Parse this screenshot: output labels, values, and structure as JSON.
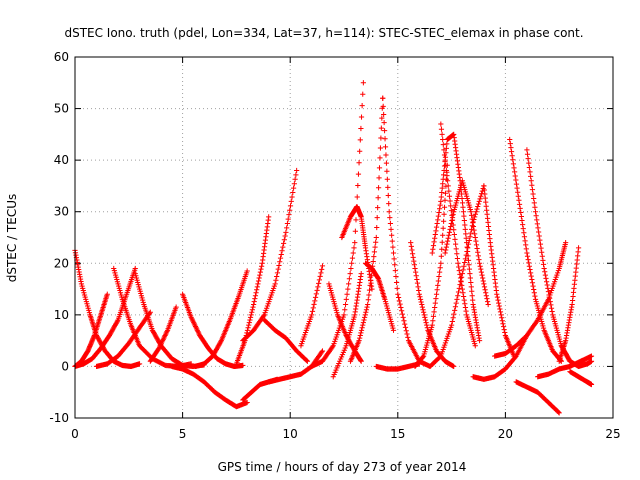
{
  "chart_data": {
    "type": "scatter",
    "title": "dSTEC Iono. truth (pdel, Lon=334, Lat=37, h=114): STEC-STEC_elemax in phase cont.",
    "xlabel": "GPS time / hours of day 273 of year 2014",
    "ylabel": "dSTEC  / TECUs",
    "xlim": [
      0,
      25
    ],
    "ylim": [
      -10,
      60
    ],
    "xticks": [
      0,
      5,
      10,
      15,
      20,
      25
    ],
    "yticks": [
      -10,
      0,
      10,
      20,
      30,
      40,
      50,
      60
    ],
    "grid": true,
    "marker": "+",
    "color": "#ff0000",
    "series": [
      {
        "x": [
          0.0,
          0.3,
          0.7,
          1.0,
          1.4,
          1.8,
          2.2,
          2.6,
          3.0
        ],
        "y": [
          22.5,
          16,
          10,
          6,
          3,
          1,
          0.2,
          0,
          0.5
        ]
      },
      {
        "x": [
          0.0,
          0.4,
          0.8,
          1.2,
          1.6,
          2.0,
          2.4,
          2.8
        ],
        "y": [
          0,
          0.5,
          1.5,
          3.5,
          6,
          9,
          14,
          19
        ]
      },
      {
        "x": [
          0.0,
          0.3,
          0.6,
          0.9,
          1.2,
          1.5
        ],
        "y": [
          0,
          1,
          3,
          6,
          10,
          14
        ]
      },
      {
        "x": [
          1.8,
          2.2,
          2.6,
          3.0,
          3.6,
          4.2,
          4.8,
          5.4
        ],
        "y": [
          19,
          13,
          8,
          4,
          1.5,
          0.2,
          0,
          0.5
        ]
      },
      {
        "x": [
          1.0,
          1.5,
          2.0,
          2.5,
          3.0,
          3.5
        ],
        "y": [
          0,
          0.5,
          2,
          4.5,
          7.5,
          10.5
        ]
      },
      {
        "x": [
          2.8,
          3.2,
          3.6,
          4.0,
          4.5,
          5.0,
          5.5,
          6.0
        ],
        "y": [
          18,
          12,
          7,
          4,
          1.5,
          0.2,
          0,
          0.3
        ]
      },
      {
        "x": [
          3.5,
          3.9,
          4.3,
          4.7
        ],
        "y": [
          1,
          3.5,
          7,
          11.5
        ]
      },
      {
        "x": [
          5.0,
          5.4,
          5.8,
          6.2,
          6.6,
          7.0,
          7.4,
          7.8
        ],
        "y": [
          14,
          9.5,
          6,
          3.5,
          1.5,
          0.5,
          0,
          0.2
        ]
      },
      {
        "x": [
          5.6,
          6.0,
          6.4,
          6.8,
          7.2,
          7.6,
          8.0
        ],
        "y": [
          0,
          0.5,
          2,
          5,
          9,
          13.5,
          18.5
        ]
      },
      {
        "x": [
          4.5,
          5.0,
          5.5,
          6.0,
          6.5,
          7.0,
          7.5,
          8.0
        ],
        "y": [
          0,
          -0.5,
          -1.5,
          -3,
          -5,
          -6.5,
          -7.8,
          -7
        ]
      },
      {
        "x": [
          7.8,
          8.2,
          8.6,
          9.0,
          9.4
        ],
        "y": [
          -6.5,
          -5,
          -3.5,
          -3,
          -2.5
        ]
      },
      {
        "x": [
          7.5,
          7.9,
          8.3,
          8.7,
          9.0
        ],
        "y": [
          0.5,
          5,
          12,
          20,
          29
        ]
      },
      {
        "x": [
          7.8,
          8.3,
          8.8,
          9.3,
          9.8,
          10.3
        ],
        "y": [
          5,
          7,
          10,
          16,
          26,
          38
        ]
      },
      {
        "x": [
          8.8,
          9.3,
          9.8,
          10.3,
          10.8
        ],
        "y": [
          9,
          7,
          5.5,
          3,
          1
        ]
      },
      {
        "x": [
          9.0,
          9.5,
          10.0,
          10.5,
          11.0,
          11.5
        ],
        "y": [
          -3,
          -2.5,
          -2,
          -1.5,
          0,
          3
        ]
      },
      {
        "x": [
          10.5,
          11.0,
          11.5
        ],
        "y": [
          4,
          10,
          19.5
        ]
      },
      {
        "x": [
          11.8,
          12.2,
          12.6,
          13.0,
          13.3
        ],
        "y": [
          16,
          10,
          6,
          3,
          1
        ]
      },
      {
        "x": [
          11.0,
          11.5,
          12.0,
          12.5,
          13.0,
          13.4
        ],
        "y": [
          0,
          1,
          4,
          10,
          24,
          55
        ]
      },
      {
        "x": [
          12.4,
          12.8,
          13.1,
          13.3,
          13.5,
          13.8
        ],
        "y": [
          25,
          29,
          31,
          29,
          23,
          15
        ]
      },
      {
        "x": [
          12.0,
          12.6,
          13.0,
          13.3
        ],
        "y": [
          -2,
          4,
          10,
          18
        ]
      },
      {
        "x": [
          12.8,
          13.2,
          13.6,
          14.0,
          14.3
        ],
        "y": [
          1,
          5,
          12,
          25,
          52
        ]
      },
      {
        "x": [
          14.3,
          14.6,
          15.0,
          15.5,
          16.0,
          16.5
        ],
        "y": [
          52,
          30,
          14,
          5,
          1,
          0
        ]
      },
      {
        "x": [
          13.5,
          13.8,
          14.1,
          14.4,
          14.8
        ],
        "y": [
          20,
          19,
          17,
          13,
          7
        ]
      },
      {
        "x": [
          14.0,
          14.5,
          15.0,
          15.5,
          16.0
        ],
        "y": [
          0,
          -0.5,
          -0.5,
          0,
          0.5
        ]
      },
      {
        "x": [
          15.6,
          16.0,
          16.4,
          16.8,
          17.2,
          17.6
        ],
        "y": [
          24,
          14,
          7,
          3,
          1,
          0
        ]
      },
      {
        "x": [
          15.8,
          16.2,
          16.6,
          17.0,
          17.3
        ],
        "y": [
          0,
          2,
          8,
          20,
          39
        ]
      },
      {
        "x": [
          17.0,
          17.4,
          17.8,
          18.2,
          18.6
        ],
        "y": [
          47,
          33,
          20,
          10,
          4
        ]
      },
      {
        "x": [
          16.6,
          17.0,
          17.3,
          17.6,
          17.9,
          18.2,
          18.5,
          18.8
        ],
        "y": [
          22,
          32,
          44,
          45,
          36,
          24,
          12,
          5
        ]
      },
      {
        "x": [
          17.2,
          17.6,
          18.0,
          18.4,
          18.8,
          19.2
        ],
        "y": [
          22,
          30,
          36,
          30,
          20,
          12
        ]
      },
      {
        "x": [
          16.5,
          17.0,
          17.5,
          18.0,
          18.5,
          19.0
        ],
        "y": [
          0,
          2,
          8,
          18,
          28,
          35
        ]
      },
      {
        "x": [
          19.0,
          19.3,
          19.6,
          20.0,
          20.4
        ],
        "y": [
          35,
          24,
          14,
          6,
          2
        ]
      },
      {
        "x": [
          18.5,
          19.0,
          19.5,
          20.0,
          20.5,
          21.0
        ],
        "y": [
          -2,
          -2.5,
          -2,
          -0.5,
          2,
          6
        ]
      },
      {
        "x": [
          20.2,
          20.6,
          21.0,
          21.4,
          21.8,
          22.2,
          22.6
        ],
        "y": [
          44,
          33,
          22,
          13,
          7,
          3,
          1
        ]
      },
      {
        "x": [
          21.0,
          21.4,
          21.8,
          22.2,
          22.6,
          23.0
        ],
        "y": [
          42,
          30,
          19,
          10,
          4,
          1
        ]
      },
      {
        "x": [
          19.5,
          20.0,
          20.5,
          21.0,
          21.5,
          22.0,
          22.5,
          22.8
        ],
        "y": [
          2,
          2.5,
          4,
          6,
          9,
          13,
          19,
          24
        ]
      },
      {
        "x": [
          20.5,
          21.0,
          21.5,
          22.0,
          22.5
        ],
        "y": [
          -3,
          -4,
          -5,
          -7,
          -9
        ]
      },
      {
        "x": [
          21.5,
          22.0,
          22.5,
          23.0,
          23.5,
          24.0
        ],
        "y": [
          -2,
          -1.5,
          -0.5,
          0,
          1,
          2
        ]
      },
      {
        "x": [
          22.5,
          22.8,
          23.1,
          23.4
        ],
        "y": [
          1,
          5,
          12,
          23
        ]
      },
      {
        "x": [
          23.0,
          23.4,
          23.8,
          24.0
        ],
        "y": [
          -1,
          -2,
          -3,
          -3.5
        ]
      },
      {
        "x": [
          22.6,
          23.0,
          23.4,
          23.8,
          24.0
        ],
        "y": [
          4,
          1,
          0,
          0.5,
          1
        ]
      }
    ]
  }
}
